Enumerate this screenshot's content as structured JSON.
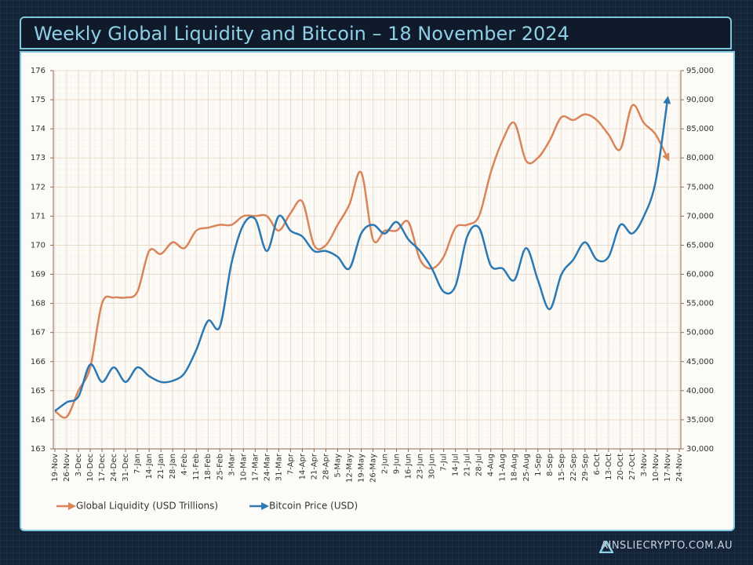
{
  "chart_data": {
    "type": "line",
    "title": "Weekly Global Liquidity and Bitcoin – 18 November 2024",
    "categories": [
      "19-Nov",
      "26-Nov",
      "3-Dec",
      "10-Dec",
      "17-Dec",
      "24-Dec",
      "31-Dec",
      "7-Jan",
      "14-Jan",
      "21-Jan",
      "28-Jan",
      "4-Feb",
      "11-Feb",
      "18-Feb",
      "25-Feb",
      "3-Mar",
      "10-Mar",
      "17-Mar",
      "24-Mar",
      "31-Mar",
      "7-Apr",
      "14-Apr",
      "21-Apr",
      "28-Apr",
      "5-May",
      "12-May",
      "19-May",
      "26-May",
      "2-Jun",
      "9-Jun",
      "16-Jun",
      "23-Jun",
      "30-Jun",
      "7-Jul",
      "14-Jul",
      "21-Jul",
      "28-Jul",
      "4-Aug",
      "11-Aug",
      "18-Aug",
      "25-Aug",
      "1-Sep",
      "8-Sep",
      "15-Sep",
      "22-Sep",
      "29-Sep",
      "6-Oct",
      "13-Oct",
      "20-Oct",
      "27-Oct",
      "3-Nov",
      "10-Nov",
      "17-Nov",
      "24-Nov"
    ],
    "series": [
      {
        "name": "Global Liquidity (USD Trillions)",
        "color": "#d9845a",
        "values": [
          164.3,
          164.1,
          165.0,
          165.8,
          168.0,
          168.2,
          168.2,
          168.4,
          169.8,
          169.7,
          170.1,
          169.9,
          170.5,
          170.6,
          170.7,
          170.7,
          171.0,
          171.0,
          171.0,
          170.5,
          171.1,
          171.5,
          170.0,
          170.0,
          170.7,
          171.4,
          172.5,
          170.2,
          170.5,
          170.5,
          170.8,
          169.5,
          169.2,
          169.6,
          170.6,
          170.7,
          171.0,
          172.5,
          173.6,
          174.2,
          172.9,
          173.0,
          173.6,
          174.4,
          174.3,
          174.5,
          174.3,
          173.8,
          173.3,
          174.8,
          174.2,
          173.8,
          173.0,
          null
        ]
      },
      {
        "name": "Bitcoin Price (USD)",
        "color": "#2a78b4",
        "axis": "y2",
        "values": [
          36500,
          38000,
          39000,
          44500,
          41500,
          44000,
          41500,
          44000,
          42500,
          41500,
          41700,
          43000,
          47000,
          52000,
          51000,
          62000,
          68500,
          69500,
          64000,
          70000,
          67500,
          66500,
          64000,
          64000,
          63000,
          61000,
          67000,
          68500,
          67000,
          69000,
          66000,
          64000,
          61000,
          57000,
          58000,
          66500,
          68000,
          61500,
          61000,
          59000,
          64500,
          59000,
          54000,
          60000,
          62500,
          65500,
          62500,
          63000,
          68500,
          67000,
          70000,
          76000,
          90000,
          null
        ]
      }
    ],
    "ylim": [
      163,
      176
    ],
    "yticks": [
      163,
      164,
      165,
      166,
      167,
      168,
      169,
      170,
      171,
      172,
      173,
      174,
      175,
      176
    ],
    "y2lim": [
      30000,
      95000
    ],
    "y2ticks": [
      {
        "value": 30000,
        "label": "30,000"
      },
      {
        "value": 35000,
        "label": "35,000"
      },
      {
        "value": 40000,
        "label": "40,000"
      },
      {
        "value": 45000,
        "label": "45,000"
      },
      {
        "value": 50000,
        "label": "50,000"
      },
      {
        "value": 55000,
        "label": "55,000"
      },
      {
        "value": 60000,
        "label": "60,000"
      },
      {
        "value": 65000,
        "label": "65,000"
      },
      {
        "value": 70000,
        "label": "70,000"
      },
      {
        "value": 75000,
        "label": "75,000"
      },
      {
        "value": 80000,
        "label": "80,000"
      },
      {
        "value": 85000,
        "label": "85,000"
      },
      {
        "value": 90000,
        "label": "90,000"
      },
      {
        "value": 95000,
        "label": "95,000"
      }
    ],
    "grid": true,
    "legend": "bottom"
  },
  "footer": {
    "brand": "AINSLIECRYPTO.COM.AU"
  }
}
